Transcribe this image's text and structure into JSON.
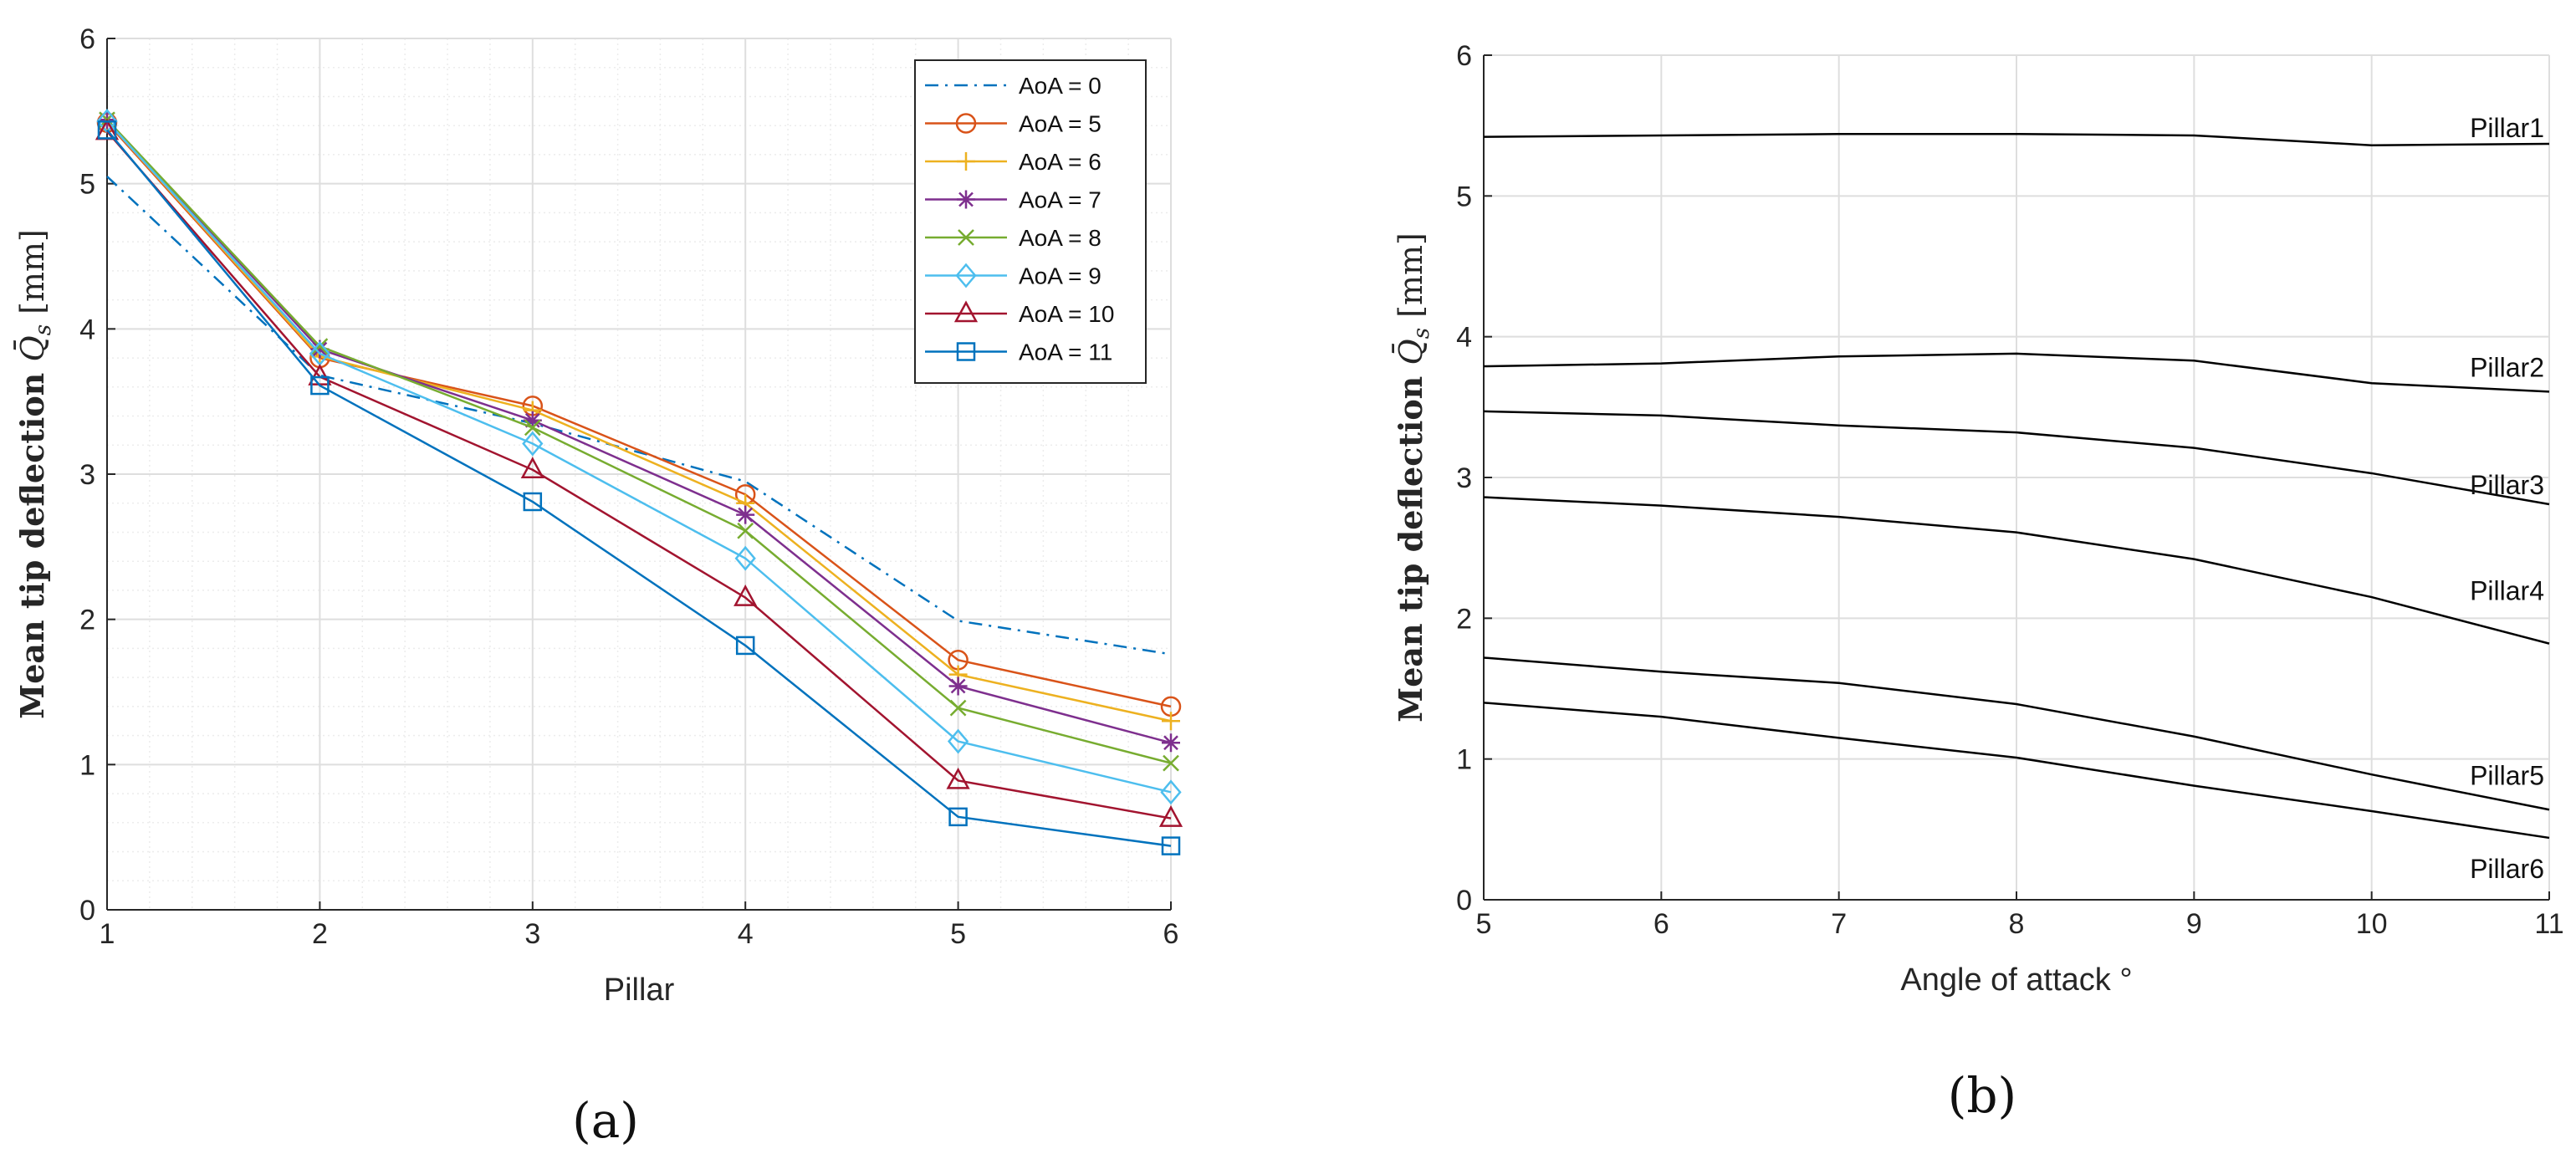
{
  "chart_data": [
    {
      "type": "line",
      "panel_label": "(a)",
      "xlabel": "Pillar",
      "ylabel": "Mean tip deflection Q̄s [mm]",
      "xlim": [
        1,
        6
      ],
      "ylim": [
        0,
        6
      ],
      "x_ticks": [
        "1",
        "2",
        "3",
        "4",
        "5",
        "6"
      ],
      "y_ticks": [
        "0",
        "1",
        "2",
        "3",
        "4",
        "5",
        "6"
      ],
      "grid": "major and minor",
      "legend_position": "top-right",
      "x": [
        1,
        2,
        3,
        4,
        5,
        6
      ],
      "series": [
        {
          "name": "AoA = 0",
          "color": "#0072BD",
          "style": "dashdot",
          "marker": "none",
          "values": [
            5.05,
            3.68,
            3.35,
            2.95,
            1.99,
            1.76
          ]
        },
        {
          "name": "AoA = 5",
          "color": "#D95319",
          "style": "solid",
          "marker": "circle",
          "values": [
            5.42,
            3.8,
            3.47,
            2.86,
            1.72,
            1.4
          ]
        },
        {
          "name": "AoA = 6",
          "color": "#EDB120",
          "style": "solid",
          "marker": "plus",
          "values": [
            5.43,
            3.81,
            3.44,
            2.8,
            1.62,
            1.3
          ]
        },
        {
          "name": "AoA = 7",
          "color": "#7E2F8E",
          "style": "solid",
          "marker": "asterisk",
          "values": [
            5.44,
            3.86,
            3.37,
            2.72,
            1.54,
            1.15
          ]
        },
        {
          "name": "AoA = 8",
          "color": "#77AC30",
          "style": "solid",
          "marker": "x",
          "values": [
            5.44,
            3.88,
            3.32,
            2.61,
            1.39,
            1.01
          ]
        },
        {
          "name": "AoA = 9",
          "color": "#4DBEEE",
          "style": "solid",
          "marker": "diamond",
          "values": [
            5.43,
            3.83,
            3.21,
            2.42,
            1.16,
            0.81
          ]
        },
        {
          "name": "AoA = 10",
          "color": "#A2142F",
          "style": "solid",
          "marker": "triangle",
          "values": [
            5.36,
            3.67,
            3.03,
            2.15,
            0.89,
            0.63
          ]
        },
        {
          "name": "AoA = 11",
          "color": "#0072BD",
          "style": "solid",
          "marker": "square",
          "values": [
            5.37,
            3.61,
            2.81,
            1.82,
            0.64,
            0.44
          ]
        }
      ]
    },
    {
      "type": "line",
      "panel_label": "(b)",
      "xlabel": "Angle of attack °",
      "ylabel": "Mean tip deflection Q̄s [mm]",
      "xlim": [
        5,
        11
      ],
      "ylim": [
        0,
        6
      ],
      "x_ticks": [
        "5",
        "6",
        "7",
        "8",
        "9",
        "10",
        "11"
      ],
      "y_ticks": [
        "0",
        "1",
        "2",
        "3",
        "4",
        "5",
        "6"
      ],
      "grid": "major",
      "x": [
        5,
        6,
        7,
        8,
        9,
        10,
        11
      ],
      "series": [
        {
          "name": "Pillar1",
          "color": "#000000",
          "values": [
            5.42,
            5.43,
            5.44,
            5.44,
            5.43,
            5.36,
            5.37
          ]
        },
        {
          "name": "Pillar2",
          "color": "#000000",
          "values": [
            3.79,
            3.81,
            3.86,
            3.88,
            3.83,
            3.67,
            3.61
          ]
        },
        {
          "name": "Pillar3",
          "color": "#000000",
          "values": [
            3.47,
            3.44,
            3.37,
            3.32,
            3.21,
            3.03,
            2.81
          ]
        },
        {
          "name": "Pillar4",
          "color": "#000000",
          "values": [
            2.86,
            2.8,
            2.72,
            2.61,
            2.42,
            2.15,
            1.82
          ]
        },
        {
          "name": "Pillar5",
          "color": "#000000",
          "values": [
            1.72,
            1.62,
            1.54,
            1.39,
            1.16,
            0.89,
            0.64
          ]
        },
        {
          "name": "Pillar6",
          "color": "#000000",
          "values": [
            1.4,
            1.3,
            1.15,
            1.01,
            0.81,
            0.63,
            0.44
          ]
        }
      ]
    }
  ]
}
